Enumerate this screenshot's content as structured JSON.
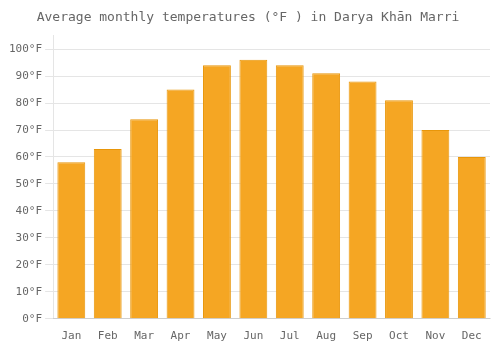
{
  "chart_data": {
    "type": "bar",
    "title": "Average monthly temperatures (°F ) in Darya Khān Marri",
    "categories": [
      "Jan",
      "Feb",
      "Mar",
      "Apr",
      "May",
      "Jun",
      "Jul",
      "Aug",
      "Sep",
      "Oct",
      "Nov",
      "Dec"
    ],
    "values": [
      58,
      63,
      74,
      85,
      94,
      96,
      94,
      91,
      88,
      81,
      70,
      60
    ],
    "color": "#F5A623",
    "ylim": [
      0,
      105
    ],
    "yticks": [
      {
        "value": 0,
        "label": "0°F"
      },
      {
        "value": 10,
        "label": "10°F"
      },
      {
        "value": 20,
        "label": "20°F"
      },
      {
        "value": 30,
        "label": "30°F"
      },
      {
        "value": 40,
        "label": "40°F"
      },
      {
        "value": 50,
        "label": "50°F"
      },
      {
        "value": 60,
        "label": "60°F"
      },
      {
        "value": 70,
        "label": "70°F"
      },
      {
        "value": 80,
        "label": "80°F"
      },
      {
        "value": 90,
        "label": "90°F"
      },
      {
        "value": 100,
        "label": "100°F"
      }
    ],
    "grid": true
  }
}
